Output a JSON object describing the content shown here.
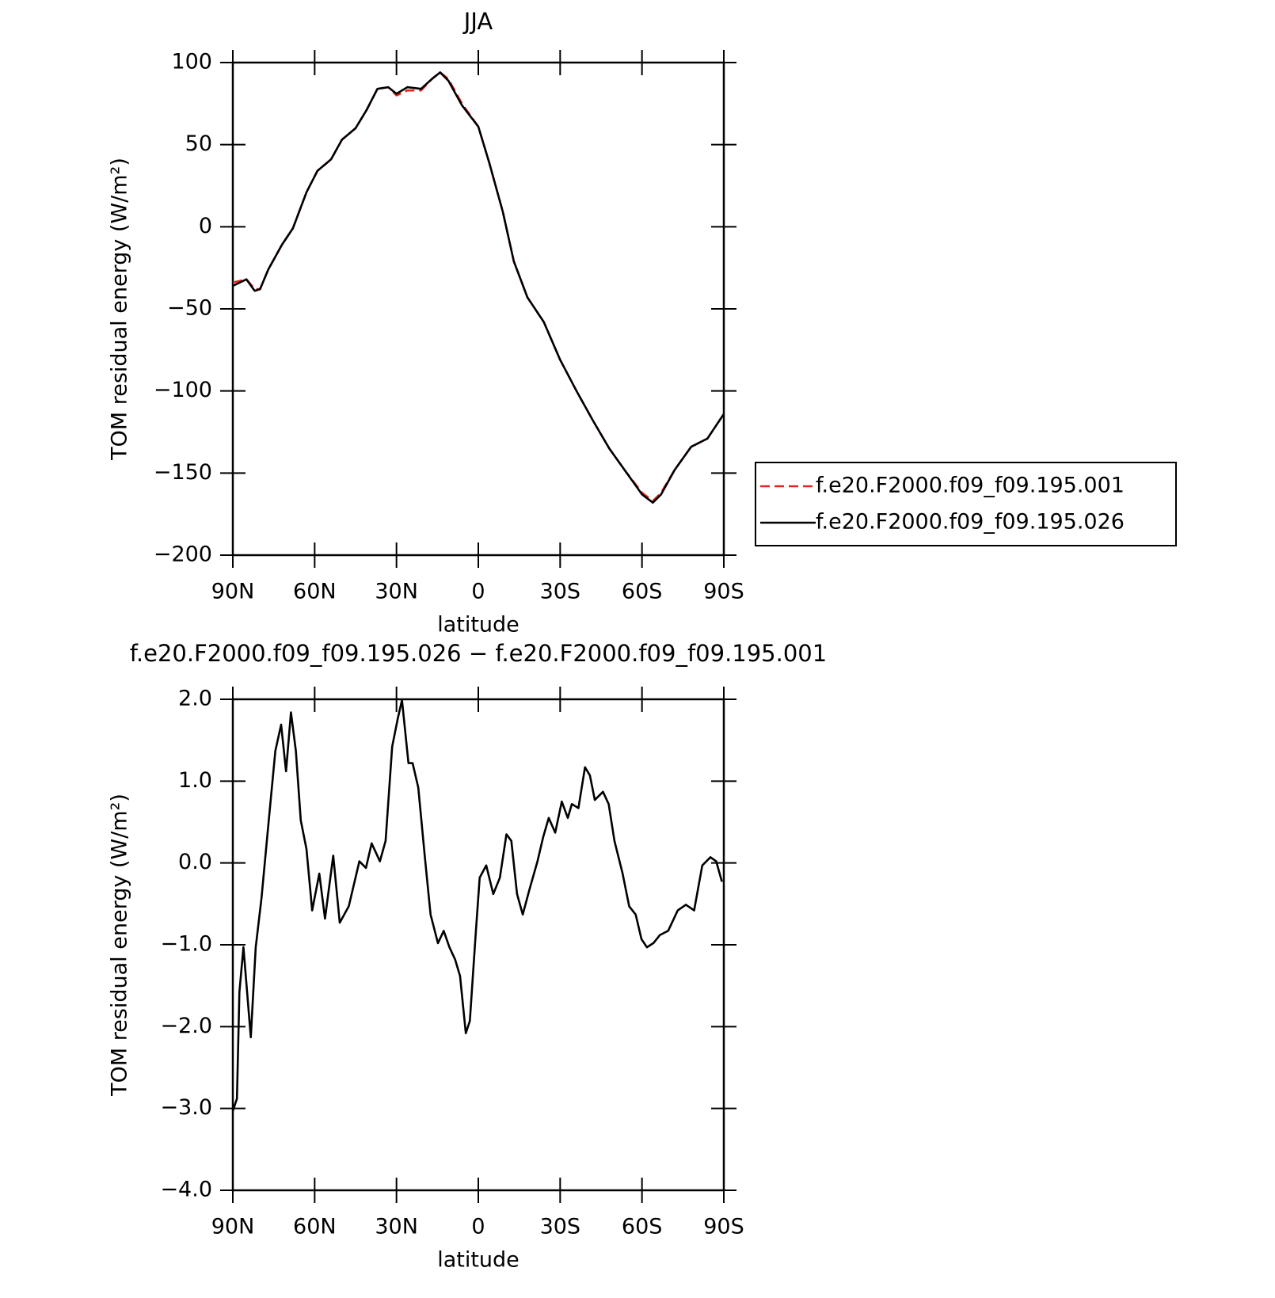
{
  "chart_data": [
    {
      "type": "line",
      "title": "JJA",
      "xlabel": "latitude",
      "ylabel": "TOM residual energy (W/m²)",
      "xlim": [
        90,
        -90
      ],
      "xticks": [
        {
          "value": 90,
          "label": "90N"
        },
        {
          "value": 60,
          "label": "60N"
        },
        {
          "value": 30,
          "label": "30N"
        },
        0,
        {
          "value": -30,
          "label": "30S"
        },
        {
          "value": -60,
          "label": "60S"
        },
        {
          "value": -90,
          "label": "90S"
        }
      ],
      "ylim": [
        -200,
        100
      ],
      "yticks": [
        {
          "value": -200,
          "label": "−200"
        },
        {
          "value": -150,
          "label": "−150"
        },
        {
          "value": -100,
          "label": "−100"
        },
        {
          "value": -50,
          "label": "−50"
        },
        0,
        50,
        100
      ],
      "legend": "right",
      "x": [
        90,
        85,
        82,
        80,
        77,
        72,
        68,
        63,
        59,
        54,
        50,
        45,
        41,
        37,
        33,
        30,
        26,
        21,
        17,
        14,
        11,
        6,
        0,
        -4,
        -9,
        -13,
        -18,
        -24,
        -30,
        -36,
        -42,
        -48,
        -54,
        -60,
        -64,
        -67,
        -72,
        -78,
        -84,
        -90
      ],
      "series": [
        {
          "name": "f.e20.F2000.f09_f09.195.001",
          "color": "#e8211d",
          "dash": true,
          "values": [
            -34,
            -32,
            -38,
            -38,
            -26,
            -11,
            -1,
            21,
            34,
            41,
            53,
            60,
            71,
            84,
            85,
            80,
            83,
            83,
            90,
            94,
            90,
            75,
            61,
            39,
            9,
            -21,
            -43,
            -58,
            -81,
            -100,
            -118,
            -135,
            -149,
            -162,
            -167,
            -162,
            -148,
            -134,
            -129,
            -114
          ]
        },
        {
          "name": "f.e20.F2000.f09_f09.195.026",
          "color": "#000000",
          "dash": false,
          "values": [
            -36,
            -32,
            -39,
            -38,
            -26,
            -11,
            -1,
            21,
            34,
            41,
            53,
            60,
            71,
            84,
            85,
            81,
            85,
            84,
            90,
            94,
            89,
            74,
            61,
            39,
            9,
            -21,
            -43,
            -58,
            -81,
            -100,
            -118,
            -135,
            -149,
            -163,
            -168,
            -163,
            -148,
            -134,
            -129,
            -114
          ]
        }
      ]
    },
    {
      "type": "line",
      "title": "f.e20.F2000.f09_f09.195.026 − f.e20.F2000.f09_f09.195.001",
      "xlabel": "latitude",
      "ylabel": "TOM residual energy (W/m²)",
      "xlim": [
        90,
        -90
      ],
      "xticks": [
        {
          "value": 90,
          "label": "90N"
        },
        {
          "value": 60,
          "label": "60N"
        },
        {
          "value": 30,
          "label": "30N"
        },
        0,
        {
          "value": -30,
          "label": "30S"
        },
        {
          "value": -60,
          "label": "60S"
        },
        {
          "value": -90,
          "label": "90S"
        }
      ],
      "ylim": [
        -4,
        2
      ],
      "yticks": [
        {
          "value": -4,
          "label": "−4.0"
        },
        {
          "value": -3,
          "label": "−3.0"
        },
        {
          "value": -2,
          "label": "−2.0"
        },
        {
          "value": -1,
          "label": "−1.0"
        },
        {
          "value": 0,
          "label": "0.0"
        },
        {
          "value": 1,
          "label": "1.0"
        },
        {
          "value": 2,
          "label": "2.0"
        }
      ],
      "x": [
        90,
        88.5,
        87.6,
        86.1,
        83.4,
        81.6,
        79.5,
        77.1,
        74.4,
        72.3,
        70.5,
        68.7,
        66.9,
        65.1,
        63.0,
        60.9,
        58.3,
        56.2,
        53.2,
        50.8,
        47.5,
        43.6,
        41.2,
        39.1,
        36.1,
        34.0,
        31.6,
        29.5,
        28.0,
        25.6,
        24.1,
        22.0,
        19.6,
        17.5,
        14.8,
        12.7,
        10.6,
        8.5,
        6.7,
        4.6,
        3.1,
        1.0,
        -0.5,
        -2.9,
        -5.5,
        -7.9,
        -10.3,
        -12.1,
        -14.2,
        -16.3,
        -18.7,
        -21.7,
        -23.8,
        -25.8,
        -28.2,
        -30.6,
        -32.8,
        -34.3,
        -36.7,
        -39.1,
        -40.9,
        -42.7,
        -45.7,
        -47.8,
        -49.9,
        -52.9,
        -55.3,
        -57.7,
        -59.8,
        -61.8,
        -64.2,
        -66.6,
        -69.6,
        -73.1,
        -76.1,
        -79.1,
        -82.1,
        -85.1,
        -87.2,
        -89.3
      ],
      "series": [
        {
          "color": "#000000",
          "values": [
            -3.03,
            -2.88,
            -1.58,
            -1.03,
            -2.13,
            -1.03,
            -0.43,
            0.42,
            1.37,
            1.69,
            1.12,
            1.84,
            1.37,
            0.52,
            0.17,
            -0.58,
            -0.13,
            -0.68,
            0.09,
            -0.73,
            -0.53,
            0.02,
            -0.06,
            0.24,
            0.02,
            0.27,
            1.42,
            1.77,
            1.99,
            1.22,
            1.22,
            0.92,
            0.07,
            -0.63,
            -0.98,
            -0.83,
            -1.03,
            -1.18,
            -1.38,
            -2.08,
            -1.93,
            -0.88,
            -0.18,
            -0.03,
            -0.38,
            -0.18,
            0.35,
            0.27,
            -0.38,
            -0.63,
            -0.33,
            0.02,
            0.32,
            0.55,
            0.37,
            0.75,
            0.55,
            0.72,
            0.67,
            1.17,
            1.07,
            0.77,
            0.87,
            0.72,
            0.27,
            -0.13,
            -0.53,
            -0.63,
            -0.93,
            -1.03,
            -0.98,
            -0.88,
            -0.83,
            -0.58,
            -0.51,
            -0.58,
            -0.03,
            0.07,
            0.02,
            -0.23
          ]
        }
      ]
    }
  ]
}
